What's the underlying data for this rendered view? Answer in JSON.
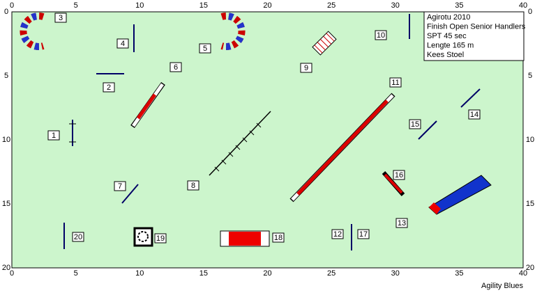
{
  "axes": {
    "x_ticks": [
      0,
      5,
      10,
      15,
      20,
      25,
      30,
      35,
      40
    ],
    "y_ticks": [
      0,
      5,
      10,
      15,
      20
    ]
  },
  "info": [
    "Agirotu 2010",
    "Finish Open Senior Handlers",
    "SPT 45 sec",
    "Lengte 165 m",
    "Kees Stoel"
  ],
  "obstacles": [
    "1",
    "2",
    "3",
    "4",
    "5",
    "6",
    "7",
    "8",
    "9",
    "10",
    "11",
    "12",
    "13",
    "14",
    "15",
    "16",
    "17",
    "18",
    "19",
    "20"
  ],
  "footer": "Agility Blues"
}
